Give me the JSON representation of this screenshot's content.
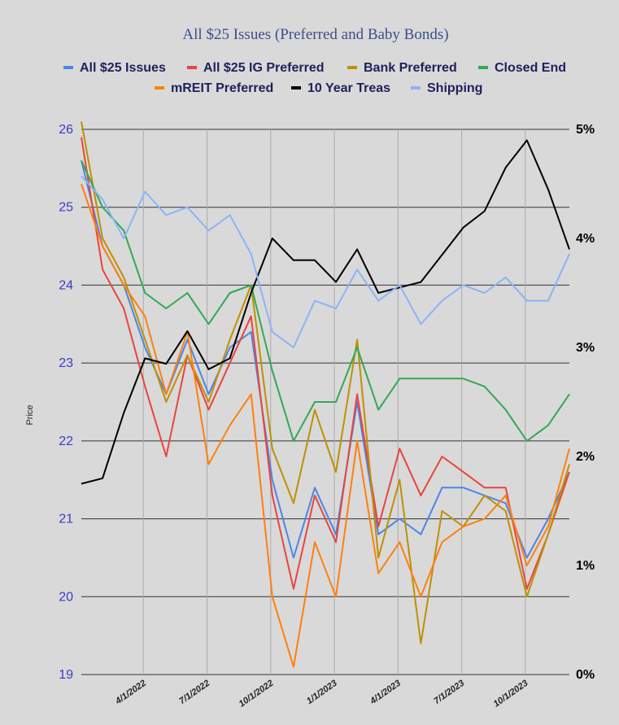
{
  "chart_data": {
    "type": "line",
    "title": "All $25 Issues (Preferred and Baby Bonds)",
    "ylabel": "Price",
    "ylim": [
      19,
      26
    ],
    "y2lim": [
      0,
      5
    ],
    "yticks": [
      "26",
      "25",
      "24",
      "23",
      "22",
      "21",
      "20",
      "19"
    ],
    "y2ticks": [
      "5%",
      "4%",
      "3%",
      "2%",
      "1%",
      "0%"
    ],
    "xticks": [
      "4/1/2022",
      "7/1/2022",
      "10/1/2022",
      "1/1/2023",
      "4/1/2023",
      "7/1/2023",
      "10/1/2023"
    ],
    "x": [
      "1/2022",
      "2/2022",
      "3/2022",
      "4/2022",
      "5/2022",
      "6/2022",
      "7/2022",
      "8/2022",
      "9/2022",
      "10/2022",
      "11/2022",
      "12/2022",
      "1/2023",
      "2/2023",
      "3/2023",
      "4/2023",
      "5/2023",
      "6/2023",
      "7/2023",
      "8/2023",
      "9/2023",
      "10/2023",
      "11/2023",
      "12/2023"
    ],
    "legend_position": "top",
    "grid": true,
    "series": [
      {
        "name": "All $25 Issues",
        "color": "#4a86e8",
        "axis": "left",
        "values": [
          25.6,
          24.5,
          24.0,
          23.2,
          22.6,
          23.3,
          22.6,
          23.2,
          23.4,
          21.5,
          20.5,
          21.4,
          20.8,
          22.5,
          20.8,
          21.0,
          20.8,
          21.4,
          21.4,
          21.3,
          21.2,
          20.5,
          21.0,
          21.6
        ]
      },
      {
        "name": "All $25 IG Preferred",
        "color": "#e8453c",
        "axis": "left",
        "values": [
          25.9,
          24.2,
          23.7,
          22.7,
          21.8,
          23.1,
          22.4,
          23.0,
          23.6,
          21.3,
          20.1,
          21.3,
          20.7,
          22.6,
          20.9,
          21.9,
          21.3,
          21.8,
          21.6,
          21.4,
          21.4,
          20.1,
          20.8,
          21.6
        ]
      },
      {
        "name": "Bank Preferred",
        "color": "#bf9000",
        "axis": "left",
        "values": [
          26.1,
          24.6,
          24.1,
          23.3,
          22.5,
          23.1,
          22.5,
          23.3,
          24.0,
          21.9,
          21.2,
          22.4,
          21.6,
          23.3,
          20.5,
          21.5,
          19.4,
          21.1,
          20.9,
          21.3,
          21.1,
          20.0,
          20.8,
          21.7
        ]
      },
      {
        "name": "Closed End",
        "color": "#34a853",
        "axis": "left",
        "values": [
          25.6,
          25.0,
          24.7,
          23.9,
          23.7,
          23.9,
          23.5,
          23.9,
          24.0,
          22.9,
          22.0,
          22.5,
          22.5,
          23.2,
          22.4,
          22.8,
          22.8,
          22.8,
          22.8,
          22.7,
          22.4,
          22.0,
          22.2,
          22.6
        ]
      },
      {
        "name": "mREIT Preferred",
        "color": "#ff7f0e",
        "axis": "left",
        "values": [
          25.3,
          24.5,
          24.0,
          23.6,
          22.6,
          23.4,
          21.7,
          22.2,
          22.6,
          20.0,
          19.1,
          20.7,
          20.0,
          22.0,
          20.3,
          20.7,
          20.0,
          20.7,
          20.9,
          21.0,
          21.3,
          20.4,
          20.9,
          21.9
        ]
      },
      {
        "name": "10 Year Treas",
        "color": "#000000",
        "axis": "right",
        "values": [
          1.75,
          1.8,
          2.4,
          2.9,
          2.85,
          3.15,
          2.8,
          2.9,
          3.5,
          4.0,
          3.8,
          3.8,
          3.6,
          3.9,
          3.5,
          3.55,
          3.6,
          3.85,
          4.1,
          4.25,
          4.65,
          4.9,
          4.45,
          3.9
        ]
      },
      {
        "name": "Shipping",
        "color": "#8ab4f8",
        "axis": "left",
        "values": [
          25.4,
          25.1,
          24.6,
          25.2,
          24.9,
          25.0,
          24.7,
          24.9,
          24.4,
          23.4,
          23.2,
          23.8,
          23.7,
          24.2,
          23.8,
          24.0,
          23.5,
          23.8,
          24.0,
          23.9,
          24.1,
          23.8,
          23.8,
          24.4
        ]
      }
    ]
  }
}
